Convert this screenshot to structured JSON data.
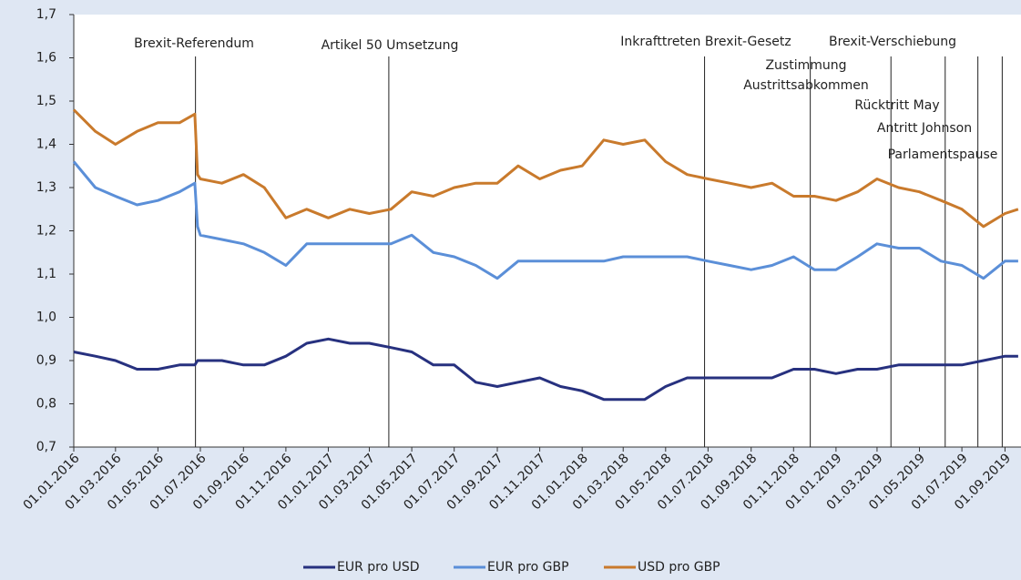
{
  "chart_data": {
    "type": "line",
    "x": [
      "01.01.2016",
      "01.02.2016",
      "01.03.2016",
      "01.04.2016",
      "01.05.2016",
      "01.06.2016",
      "23.06.2016",
      "27.06.2016",
      "01.07.2016",
      "01.08.2016",
      "01.09.2016",
      "01.10.2016",
      "01.11.2016",
      "01.12.2016",
      "01.01.2017",
      "01.02.2017",
      "01.03.2017",
      "01.04.2017",
      "01.05.2017",
      "01.06.2017",
      "01.07.2017",
      "01.08.2017",
      "01.09.2017",
      "01.10.2017",
      "01.11.2017",
      "01.12.2017",
      "01.01.2018",
      "01.02.2018",
      "01.03.2018",
      "01.04.2018",
      "01.05.2018",
      "01.06.2018",
      "01.07.2018",
      "01.08.2018",
      "01.09.2018",
      "01.10.2018",
      "01.11.2018",
      "01.12.2018",
      "01.01.2019",
      "01.02.2019",
      "01.03.2019",
      "01.04.2019",
      "01.05.2019",
      "01.06.2019",
      "01.07.2019",
      "01.08.2019",
      "01.09.2019",
      "20.09.2019"
    ],
    "series": [
      {
        "name": "EUR pro USD",
        "color": "#27317f",
        "values": [
          0.92,
          0.91,
          0.9,
          0.88,
          0.88,
          0.89,
          0.89,
          0.9,
          0.9,
          0.9,
          0.89,
          0.89,
          0.91,
          0.94,
          0.95,
          0.94,
          0.94,
          0.93,
          0.92,
          0.89,
          0.89,
          0.85,
          0.84,
          0.85,
          0.86,
          0.84,
          0.83,
          0.81,
          0.81,
          0.81,
          0.84,
          0.86,
          0.86,
          0.86,
          0.86,
          0.86,
          0.88,
          0.88,
          0.87,
          0.88,
          0.88,
          0.89,
          0.89,
          0.89,
          0.89,
          0.9,
          0.91,
          0.91
        ]
      },
      {
        "name": "EUR pro GBP",
        "color": "#5b8fd8",
        "values": [
          1.36,
          1.3,
          1.28,
          1.26,
          1.27,
          1.29,
          1.31,
          1.21,
          1.19,
          1.18,
          1.17,
          1.15,
          1.12,
          1.17,
          1.17,
          1.17,
          1.17,
          1.17,
          1.19,
          1.15,
          1.14,
          1.12,
          1.09,
          1.13,
          1.13,
          1.13,
          1.13,
          1.13,
          1.14,
          1.14,
          1.14,
          1.14,
          1.13,
          1.12,
          1.11,
          1.12,
          1.14,
          1.11,
          1.11,
          1.14,
          1.17,
          1.16,
          1.16,
          1.13,
          1.12,
          1.09,
          1.13,
          1.13
        ]
      },
      {
        "name": "USD pro GBP",
        "color": "#c97a2c",
        "values": [
          1.48,
          1.43,
          1.4,
          1.43,
          1.45,
          1.45,
          1.47,
          1.33,
          1.32,
          1.31,
          1.33,
          1.3,
          1.23,
          1.25,
          1.23,
          1.25,
          1.24,
          1.25,
          1.29,
          1.28,
          1.3,
          1.31,
          1.31,
          1.35,
          1.32,
          1.34,
          1.35,
          1.41,
          1.4,
          1.41,
          1.36,
          1.33,
          1.32,
          1.31,
          1.3,
          1.31,
          1.28,
          1.28,
          1.27,
          1.29,
          1.32,
          1.3,
          1.29,
          1.27,
          1.25,
          1.21,
          1.24,
          1.25
        ]
      }
    ],
    "xlim": [
      "01.01.2016",
      "24.09.2019"
    ],
    "xticks": [
      "01.01.2016",
      "01.03.2016",
      "01.05.2016",
      "01.07.2016",
      "01.09.2016",
      "01.11.2016",
      "01.01.2017",
      "01.03.2017",
      "01.05.2017",
      "01.07.2017",
      "01.09.2017",
      "01.11.2017",
      "01.01.2018",
      "01.03.2018",
      "01.05.2018",
      "01.07.2018",
      "01.09.2018",
      "01.11.2018",
      "01.01.2019",
      "01.03.2019",
      "01.05.2019",
      "01.07.2019",
      "01.09.2019"
    ],
    "ylim": [
      0.7,
      1.7
    ],
    "yticks": [
      {
        "value": 0.7,
        "label": "0,7"
      },
      {
        "value": 0.8,
        "label": "0,8"
      },
      {
        "value": 0.9,
        "label": "0,9"
      },
      {
        "value": 1.0,
        "label": "1,0"
      },
      {
        "value": 1.1,
        "label": "1,1"
      },
      {
        "value": 1.2,
        "label": "1,2"
      },
      {
        "value": 1.3,
        "label": "1,3"
      },
      {
        "value": 1.4,
        "label": "1,4"
      },
      {
        "value": 1.5,
        "label": "1,5"
      },
      {
        "value": 1.6,
        "label": "1,6"
      },
      {
        "value": 1.7,
        "label": "1,7"
      }
    ],
    "annotations": [
      {
        "x": "24.06.2016",
        "lines": [
          "Brexit-Referendum"
        ]
      },
      {
        "x": "29.03.2017",
        "lines": [
          "Artikel 50 Umsetzung"
        ]
      },
      {
        "x": "26.06.2018",
        "lines": [
          "Inkrafttreten Brexit-Gesetz"
        ]
      },
      {
        "x": "25.11.2018",
        "lines": [
          "Zustimmung",
          "Austrittsabkommen"
        ]
      },
      {
        "x": "21.03.2019",
        "lines": [
          "Brexit-Verschiebung"
        ]
      },
      {
        "x": "07.06.2019",
        "lines": [
          "Rücktritt May"
        ]
      },
      {
        "x": "24.07.2019",
        "lines": [
          "Antritt Johnson"
        ]
      },
      {
        "x": "28.08.2019",
        "lines": [
          "Parlamentspause"
        ]
      }
    ],
    "legend": "bottom"
  }
}
